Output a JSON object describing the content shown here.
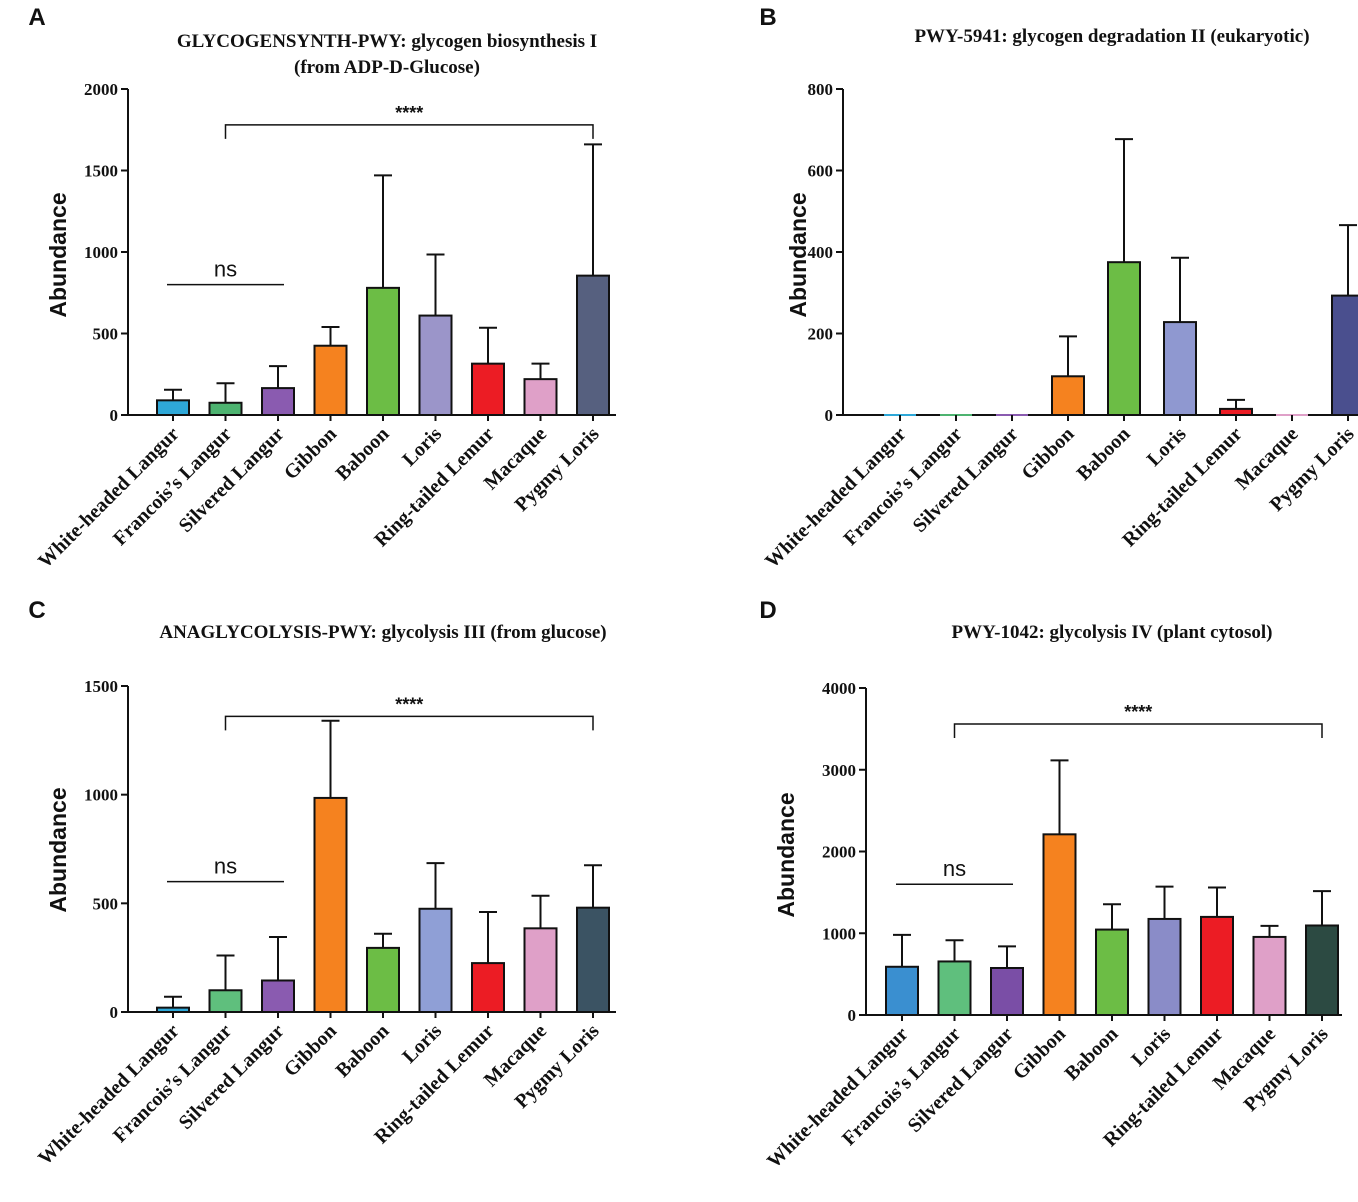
{
  "chart_data": [
    {
      "panel": "A",
      "type": "bar",
      "title_lines": [
        "GLYCOGENSYNTH-PWY: glycogen biosynthesis I",
        "(from ADP-D-Glucose)"
      ],
      "xlabel": "",
      "ylabel": "Abundance",
      "ylim": [
        0,
        2000
      ],
      "yticks": [
        0,
        500,
        1000,
        1500,
        2000
      ],
      "categories": [
        "White-headed Langur",
        "Francois’s Langur",
        "Silvered Langur",
        "Gibbon",
        "Baboon",
        "Loris",
        "Ring-tailed Lemur",
        "Macaque",
        "Pygmy Loris"
      ],
      "values": [
        90,
        75,
        165,
        425,
        780,
        610,
        315,
        220,
        855
      ],
      "errors": [
        65,
        120,
        135,
        115,
        690,
        375,
        220,
        95,
        805
      ],
      "colors": [
        "#2ea8d8",
        "#4db370",
        "#8a5bb0",
        "#f5821f",
        "#6cbd45",
        "#9b95c9",
        "#ec1c24",
        "#dfa0c8",
        "#56607f"
      ],
      "annotations": [
        {
          "label": "ns",
          "from": 0,
          "to": 2,
          "y": 800,
          "style": "line"
        },
        {
          "label": "****",
          "from": 1,
          "to": 8,
          "y": 1780,
          "style": "bracket"
        }
      ]
    },
    {
      "panel": "B",
      "type": "bar",
      "title_lines": [
        "PWY-5941: glycogen degradation II (eukaryotic)"
      ],
      "xlabel": "",
      "ylabel": "Abundance",
      "ylim": [
        0,
        800
      ],
      "yticks": [
        0,
        200,
        400,
        600,
        800
      ],
      "categories": [
        "White-headed Langur",
        "Francois’s Langur",
        "Silvered Langur",
        "Gibbon",
        "Baboon",
        "Loris",
        "Ring-tailed Lemur",
        "Macaque",
        "Pygmy Loris"
      ],
      "values": [
        0,
        0,
        0,
        95,
        375,
        228,
        15,
        0,
        293
      ],
      "errors": [
        0,
        0,
        0,
        98,
        302,
        158,
        22,
        0,
        173
      ],
      "colors": [
        "#2ea8d8",
        "#4db370",
        "#8a5bb0",
        "#f5821f",
        "#6cbd45",
        "#8f98d0",
        "#ec1c24",
        "#dfa0c8",
        "#4a4f8e"
      ],
      "annotations": []
    },
    {
      "panel": "C",
      "type": "bar",
      "title_lines": [
        "ANAGLYCOLYSIS-PWY: glycolysis III (from glucose)"
      ],
      "xlabel": "",
      "ylabel": "Abundance",
      "ylim": [
        0,
        1500
      ],
      "yticks": [
        0,
        500,
        1000,
        1500
      ],
      "categories": [
        "White-headed Langur",
        "Francois’s Langur",
        "Silvered Langur",
        "Gibbon",
        "Baboon",
        "Loris",
        "Ring-tailed Lemur",
        "Macaque",
        "Pygmy Loris"
      ],
      "values": [
        20,
        100,
        145,
        985,
        295,
        475,
        225,
        385,
        480
      ],
      "errors": [
        50,
        160,
        200,
        355,
        65,
        210,
        235,
        150,
        195
      ],
      "colors": [
        "#2ea8d8",
        "#5fbf7d",
        "#8a5bb0",
        "#f5821f",
        "#6cbd45",
        "#8f9fd6",
        "#ec1c24",
        "#dfa0c8",
        "#3b5363"
      ],
      "annotations": [
        {
          "label": "ns",
          "from": 0,
          "to": 2,
          "y": 600,
          "style": "line"
        },
        {
          "label": "****",
          "from": 1,
          "to": 8,
          "y": 1360,
          "style": "bracket"
        }
      ]
    },
    {
      "panel": "D",
      "type": "bar",
      "title_lines": [
        "PWY-1042: glycolysis IV (plant cytosol)"
      ],
      "xlabel": "",
      "ylabel": "Abundance",
      "ylim": [
        0,
        4000
      ],
      "yticks": [
        0,
        1000,
        2000,
        3000,
        4000
      ],
      "categories": [
        "White-headed Langur",
        "Francois’s Langur",
        "Silvered Langur",
        "Gibbon",
        "Baboon",
        "Loris",
        "Ring-tailed Lemur",
        "Macaque",
        "Pygmy Loris"
      ],
      "values": [
        590,
        655,
        575,
        2210,
        1045,
        1175,
        1200,
        955,
        1095
      ],
      "errors": [
        390,
        260,
        265,
        905,
        310,
        395,
        360,
        135,
        420
      ],
      "colors": [
        "#3a8fd0",
        "#5fbf7d",
        "#7a4ea6",
        "#f5821f",
        "#6cbd45",
        "#8a8cc8",
        "#ec1c24",
        "#dfa0c8",
        "#2c4a42"
      ],
      "annotations": [
        {
          "label": "ns",
          "from": 0,
          "to": 2,
          "y": 1600,
          "style": "line"
        },
        {
          "label": "****",
          "from": 1,
          "to": 8,
          "y": 3560,
          "style": "bracket"
        }
      ]
    }
  ]
}
